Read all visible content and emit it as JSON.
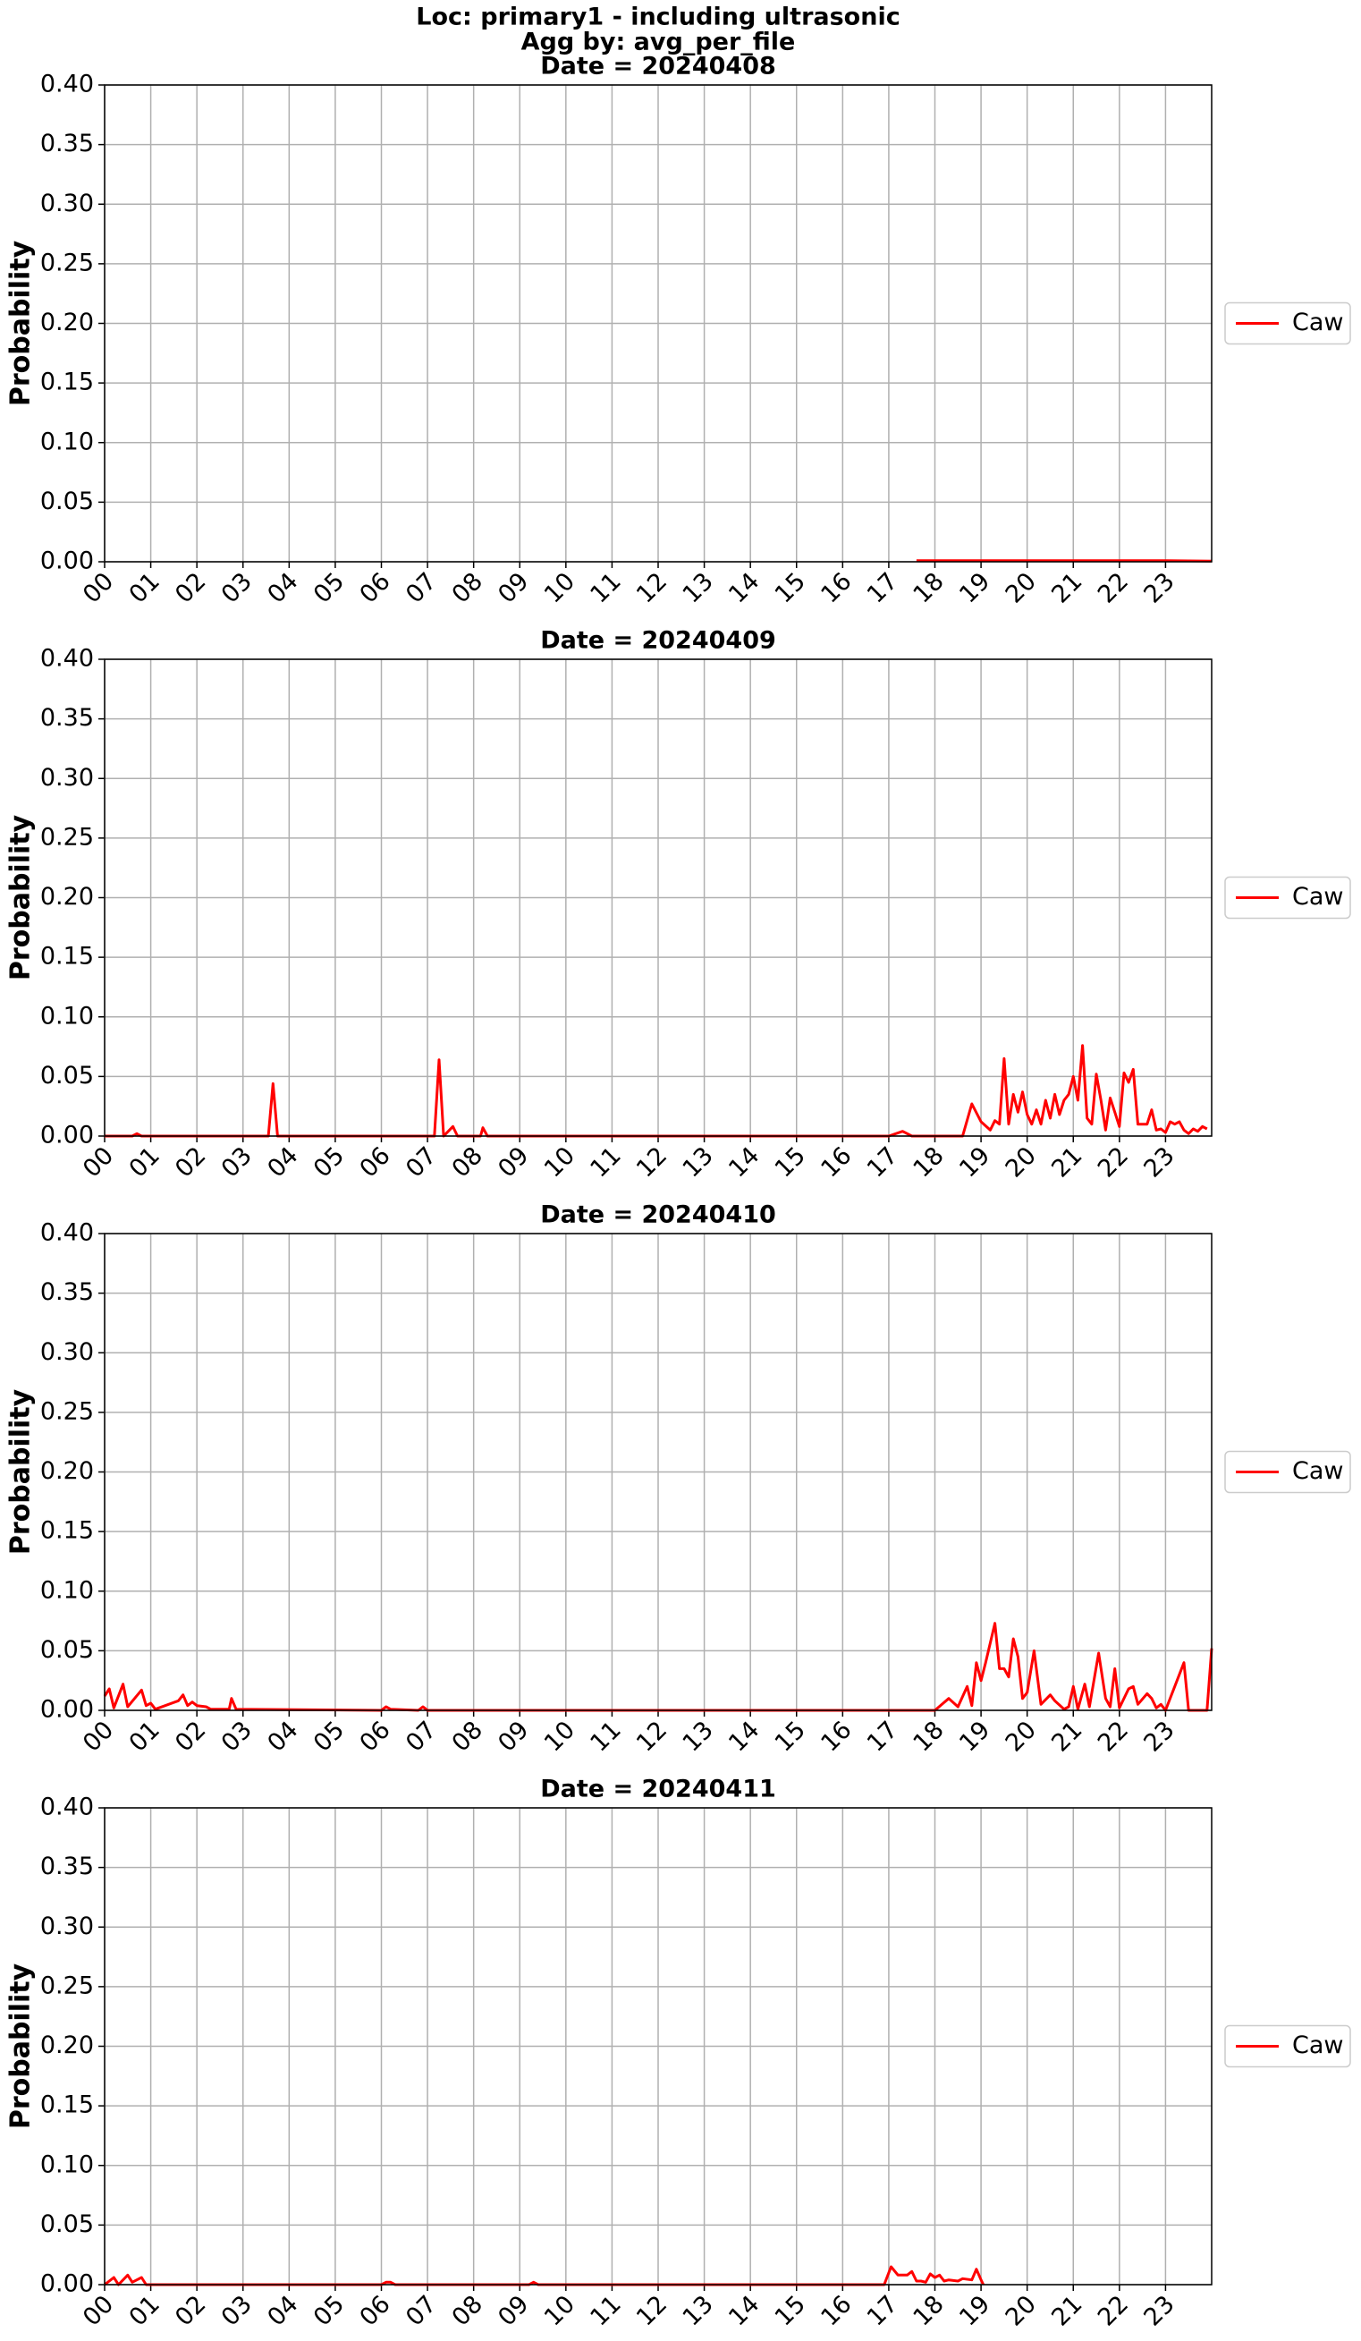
{
  "title": "Loc: primary1 - including ultrasonic",
  "subtitle": "Agg by: avg_per_file",
  "chart_data": [
    {
      "type": "line",
      "title": "Date = 20240408",
      "y_label": "Probability",
      "grid": true,
      "legend": "right",
      "xlim": [
        0,
        24
      ],
      "ylim": [
        0,
        0.4
      ],
      "xticks": [
        {
          "value": 0,
          "label": "00"
        },
        {
          "value": 1,
          "label": "01"
        },
        {
          "value": 2,
          "label": "02"
        },
        {
          "value": 3,
          "label": "03"
        },
        {
          "value": 4,
          "label": "04"
        },
        {
          "value": 5,
          "label": "05"
        },
        {
          "value": 6,
          "label": "06"
        },
        {
          "value": 7,
          "label": "07"
        },
        {
          "value": 8,
          "label": "08"
        },
        {
          "value": 9,
          "label": "09"
        },
        {
          "value": 10,
          "label": "10"
        },
        {
          "value": 11,
          "label": "11"
        },
        {
          "value": 12,
          "label": "12"
        },
        {
          "value": 13,
          "label": "13"
        },
        {
          "value": 14,
          "label": "14"
        },
        {
          "value": 15,
          "label": "15"
        },
        {
          "value": 16,
          "label": "16"
        },
        {
          "value": 17,
          "label": "17"
        },
        {
          "value": 18,
          "label": "18"
        },
        {
          "value": 19,
          "label": "19"
        },
        {
          "value": 20,
          "label": "20"
        },
        {
          "value": 21,
          "label": "21"
        },
        {
          "value": 22,
          "label": "22"
        },
        {
          "value": 23,
          "label": "23"
        }
      ],
      "yticks": [
        {
          "value": 0,
          "label": "0.00"
        },
        {
          "value": 0.05,
          "label": "0.05"
        },
        {
          "value": 0.1,
          "label": "0.10"
        },
        {
          "value": 0.15,
          "label": "0.15"
        },
        {
          "value": 0.2,
          "label": "0.20"
        },
        {
          "value": 0.25,
          "label": "0.25"
        },
        {
          "value": 0.3,
          "label": "0.30"
        },
        {
          "value": 0.35,
          "label": "0.35"
        },
        {
          "value": 0.4,
          "label": "0.40"
        }
      ],
      "x": [
        17.6,
        18,
        19,
        20,
        21,
        22,
        23,
        24
      ],
      "series": [
        {
          "name": "Caw",
          "color": "#ff0000",
          "values": [
            0.001,
            0.001,
            0.001,
            0.001,
            0.001,
            0.001,
            0.001,
            0.0005
          ]
        }
      ]
    },
    {
      "type": "line",
      "title": "Date = 20240409",
      "y_label": "Probability",
      "grid": true,
      "legend": "right",
      "xlim": [
        0,
        24
      ],
      "ylim": [
        0,
        0.4
      ],
      "xticks": [
        {
          "value": 0,
          "label": "00"
        },
        {
          "value": 1,
          "label": "01"
        },
        {
          "value": 2,
          "label": "02"
        },
        {
          "value": 3,
          "label": "03"
        },
        {
          "value": 4,
          "label": "04"
        },
        {
          "value": 5,
          "label": "05"
        },
        {
          "value": 6,
          "label": "06"
        },
        {
          "value": 7,
          "label": "07"
        },
        {
          "value": 8,
          "label": "08"
        },
        {
          "value": 9,
          "label": "09"
        },
        {
          "value": 10,
          "label": "10"
        },
        {
          "value": 11,
          "label": "11"
        },
        {
          "value": 12,
          "label": "12"
        },
        {
          "value": 13,
          "label": "13"
        },
        {
          "value": 14,
          "label": "14"
        },
        {
          "value": 15,
          "label": "15"
        },
        {
          "value": 16,
          "label": "16"
        },
        {
          "value": 17,
          "label": "17"
        },
        {
          "value": 18,
          "label": "18"
        },
        {
          "value": 19,
          "label": "19"
        },
        {
          "value": 20,
          "label": "20"
        },
        {
          "value": 21,
          "label": "21"
        },
        {
          "value": 22,
          "label": "22"
        },
        {
          "value": 23,
          "label": "23"
        }
      ],
      "yticks": [
        {
          "value": 0,
          "label": "0.00"
        },
        {
          "value": 0.05,
          "label": "0.05"
        },
        {
          "value": 0.1,
          "label": "0.10"
        },
        {
          "value": 0.15,
          "label": "0.15"
        },
        {
          "value": 0.2,
          "label": "0.20"
        },
        {
          "value": 0.25,
          "label": "0.25"
        },
        {
          "value": 0.3,
          "label": "0.30"
        },
        {
          "value": 0.35,
          "label": "0.35"
        },
        {
          "value": 0.4,
          "label": "0.40"
        }
      ],
      "x": [
        0,
        0.6,
        0.7,
        0.8,
        3.55,
        3.65,
        3.75,
        7.15,
        7.25,
        7.35,
        7.55,
        7.65,
        8.15,
        8.2,
        8.3,
        17,
        17.3,
        17.5,
        18.6,
        18.8,
        19,
        19.2,
        19.3,
        19.4,
        19.5,
        19.6,
        19.7,
        19.8,
        19.9,
        20,
        20.1,
        20.2,
        20.3,
        20.4,
        20.5,
        20.6,
        20.7,
        20.8,
        20.9,
        21,
        21.1,
        21.2,
        21.3,
        21.4,
        21.5,
        21.6,
        21.7,
        21.8,
        21.9,
        22,
        22.1,
        22.2,
        22.3,
        22.4,
        22.6,
        22.7,
        22.8,
        22.9,
        23,
        23.1,
        23.2,
        23.3,
        23.4,
        23.5,
        23.6,
        23.7,
        23.8,
        23.9
      ],
      "series": [
        {
          "name": "Caw",
          "color": "#ff0000",
          "values": [
            0,
            0,
            0.002,
            0,
            0,
            0.044,
            0,
            0,
            0.064,
            0,
            0.008,
            0,
            0,
            0.007,
            0,
            0,
            0.004,
            0,
            0,
            0.027,
            0.012,
            0.005,
            0.013,
            0.01,
            0.065,
            0.01,
            0.035,
            0.02,
            0.037,
            0.018,
            0.01,
            0.022,
            0.01,
            0.03,
            0.015,
            0.035,
            0.018,
            0.03,
            0.035,
            0.05,
            0.03,
            0.076,
            0.015,
            0.01,
            0.052,
            0.03,
            0.005,
            0.032,
            0.02,
            0.008,
            0.053,
            0.045,
            0.056,
            0.01,
            0.01,
            0.022,
            0.005,
            0.006,
            0.003,
            0.012,
            0.01,
            0.012,
            0.005,
            0.002,
            0.006,
            0.004,
            0.008,
            0.006
          ]
        }
      ]
    },
    {
      "type": "line",
      "title": "Date = 20240410",
      "y_label": "Probability",
      "grid": true,
      "legend": "right",
      "xlim": [
        0,
        24
      ],
      "ylim": [
        0,
        0.4
      ],
      "xticks": [
        {
          "value": 0,
          "label": "00"
        },
        {
          "value": 1,
          "label": "01"
        },
        {
          "value": 2,
          "label": "02"
        },
        {
          "value": 3,
          "label": "03"
        },
        {
          "value": 4,
          "label": "04"
        },
        {
          "value": 5,
          "label": "05"
        },
        {
          "value": 6,
          "label": "06"
        },
        {
          "value": 7,
          "label": "07"
        },
        {
          "value": 8,
          "label": "08"
        },
        {
          "value": 9,
          "label": "09"
        },
        {
          "value": 10,
          "label": "10"
        },
        {
          "value": 11,
          "label": "11"
        },
        {
          "value": 12,
          "label": "12"
        },
        {
          "value": 13,
          "label": "13"
        },
        {
          "value": 14,
          "label": "14"
        },
        {
          "value": 15,
          "label": "15"
        },
        {
          "value": 16,
          "label": "16"
        },
        {
          "value": 17,
          "label": "17"
        },
        {
          "value": 18,
          "label": "18"
        },
        {
          "value": 19,
          "label": "19"
        },
        {
          "value": 20,
          "label": "20"
        },
        {
          "value": 21,
          "label": "21"
        },
        {
          "value": 22,
          "label": "22"
        },
        {
          "value": 23,
          "label": "23"
        }
      ],
      "yticks": [
        {
          "value": 0,
          "label": "0.00"
        },
        {
          "value": 0.05,
          "label": "0.05"
        },
        {
          "value": 0.1,
          "label": "0.10"
        },
        {
          "value": 0.15,
          "label": "0.15"
        },
        {
          "value": 0.2,
          "label": "0.20"
        },
        {
          "value": 0.25,
          "label": "0.25"
        },
        {
          "value": 0.3,
          "label": "0.30"
        },
        {
          "value": 0.35,
          "label": "0.35"
        },
        {
          "value": 0.4,
          "label": "0.40"
        }
      ],
      "x": [
        0,
        0.1,
        0.2,
        0.4,
        0.5,
        0.8,
        0.9,
        1,
        1.1,
        1.6,
        1.7,
        1.8,
        1.9,
        2,
        2.2,
        2.3,
        2.7,
        2.75,
        2.85,
        6,
        6.1,
        6.2,
        6.8,
        6.9,
        7,
        18,
        18.3,
        18.5,
        18.7,
        18.8,
        18.9,
        19,
        19.1,
        19.3,
        19.4,
        19.5,
        19.6,
        19.7,
        19.8,
        19.9,
        20,
        20.15,
        20.3,
        20.5,
        20.6,
        20.8,
        20.9,
        21,
        21.1,
        21.25,
        21.35,
        21.55,
        21.7,
        21.8,
        21.9,
        22,
        22.2,
        22.3,
        22.4,
        22.6,
        22.7,
        22.8,
        22.9,
        23,
        23.4,
        23.5,
        23.9,
        24
      ],
      "series": [
        {
          "name": "Caw",
          "color": "#ff0000",
          "values": [
            0.012,
            0.018,
            0.002,
            0.022,
            0.003,
            0.017,
            0.004,
            0.006,
            0.001,
            0.008,
            0.013,
            0.004,
            0.007,
            0.004,
            0.003,
            0.001,
            0.001,
            0.01,
            0.001,
            0,
            0.003,
            0.001,
            0,
            0.003,
            0,
            0,
            0.01,
            0.003,
            0.02,
            0.004,
            0.04,
            0.025,
            0.04,
            0.073,
            0.035,
            0.035,
            0.028,
            0.06,
            0.045,
            0.01,
            0.015,
            0.05,
            0.005,
            0.013,
            0.008,
            0.001,
            0.003,
            0.02,
            0.001,
            0.022,
            0.003,
            0.048,
            0.01,
            0.003,
            0.035,
            0.002,
            0.018,
            0.02,
            0.005,
            0.014,
            0.01,
            0.002,
            0.005,
            0,
            0.04,
            0,
            0,
            0.052
          ]
        }
      ]
    },
    {
      "type": "line",
      "title": "Date = 20240411",
      "y_label": "Probability",
      "grid": true,
      "legend": "right",
      "xlim": [
        0,
        24
      ],
      "ylim": [
        0,
        0.4
      ],
      "xticks": [
        {
          "value": 0,
          "label": "00"
        },
        {
          "value": 1,
          "label": "01"
        },
        {
          "value": 2,
          "label": "02"
        },
        {
          "value": 3,
          "label": "03"
        },
        {
          "value": 4,
          "label": "04"
        },
        {
          "value": 5,
          "label": "05"
        },
        {
          "value": 6,
          "label": "06"
        },
        {
          "value": 7,
          "label": "07"
        },
        {
          "value": 8,
          "label": "08"
        },
        {
          "value": 9,
          "label": "09"
        },
        {
          "value": 10,
          "label": "10"
        },
        {
          "value": 11,
          "label": "11"
        },
        {
          "value": 12,
          "label": "12"
        },
        {
          "value": 13,
          "label": "13"
        },
        {
          "value": 14,
          "label": "14"
        },
        {
          "value": 15,
          "label": "15"
        },
        {
          "value": 16,
          "label": "16"
        },
        {
          "value": 17,
          "label": "17"
        },
        {
          "value": 18,
          "label": "18"
        },
        {
          "value": 19,
          "label": "19"
        },
        {
          "value": 20,
          "label": "20"
        },
        {
          "value": 21,
          "label": "21"
        },
        {
          "value": 22,
          "label": "22"
        },
        {
          "value": 23,
          "label": "23"
        }
      ],
      "yticks": [
        {
          "value": 0,
          "label": "0.00"
        },
        {
          "value": 0.05,
          "label": "0.05"
        },
        {
          "value": 0.1,
          "label": "0.10"
        },
        {
          "value": 0.15,
          "label": "0.15"
        },
        {
          "value": 0.2,
          "label": "0.20"
        },
        {
          "value": 0.25,
          "label": "0.25"
        },
        {
          "value": 0.3,
          "label": "0.30"
        },
        {
          "value": 0.35,
          "label": "0.35"
        },
        {
          "value": 0.4,
          "label": "0.40"
        }
      ],
      "x": [
        0,
        0.2,
        0.3,
        0.5,
        0.6,
        0.8,
        0.9,
        6,
        6.1,
        6.2,
        6.3,
        9.2,
        9.3,
        9.4,
        16.9,
        17.05,
        17.2,
        17.4,
        17.5,
        17.6,
        17.7,
        17.8,
        17.9,
        18,
        18.1,
        18.2,
        18.3,
        18.5,
        18.6,
        18.8,
        18.9,
        19,
        19.05
      ],
      "series": [
        {
          "name": "Caw",
          "color": "#ff0000",
          "values": [
            0,
            0.006,
            0,
            0.008,
            0.002,
            0.006,
            0,
            0,
            0.002,
            0.002,
            0,
            0,
            0.002,
            0,
            0,
            0.015,
            0.008,
            0.008,
            0.011,
            0.003,
            0.003,
            0.002,
            0.009,
            0.006,
            0.008,
            0.003,
            0.004,
            0.003,
            0.005,
            0.004,
            0.013,
            0.004,
            0
          ]
        }
      ]
    }
  ]
}
